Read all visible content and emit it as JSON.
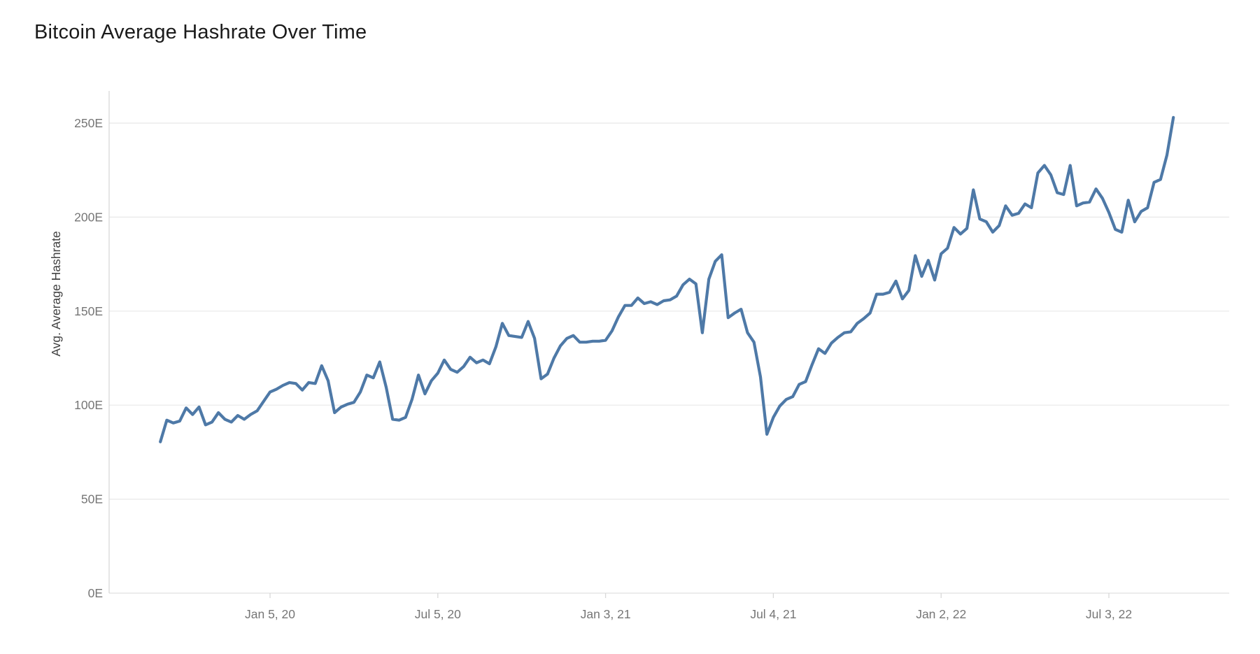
{
  "chart": {
    "title": "Bitcoin Average Hashrate Over Time",
    "y_axis_title": "Avg. Average Hashrate"
  },
  "colors": {
    "line": "#4e79a7",
    "gridline": "#e8e8e8",
    "axis_line": "#d8d8d8",
    "tick_label": "#767676",
    "axis_title": "#424242",
    "title": "#1a1a1a",
    "background": "#ffffff"
  },
  "chart_data": {
    "type": "line",
    "title": "Bitcoin Average Hashrate Over Time",
    "xlabel": "",
    "ylabel": "Avg. Average Hashrate",
    "series_name": "Avg. Average Hashrate",
    "unit_suffix": "E",
    "grid": "horizontal",
    "legend": "none",
    "ylim": [
      0,
      267
    ],
    "y_ticks": [
      0,
      50,
      100,
      150,
      200,
      250
    ],
    "y_tick_labels": [
      "0E",
      "50E",
      "100E",
      "150E",
      "200E",
      "250E"
    ],
    "x_tick_labels": [
      "Jan 5, 20",
      "Jul 5, 20",
      "Jan 3, 21",
      "Jul 4, 21",
      "Jan 2, 22",
      "Jul 3, 22"
    ],
    "x_tick_indices": [
      17,
      43,
      69,
      95,
      121,
      147
    ],
    "dates": [
      "2019-09-08",
      "2019-09-15",
      "2019-09-22",
      "2019-09-29",
      "2019-10-06",
      "2019-10-13",
      "2019-10-20",
      "2019-10-27",
      "2019-11-03",
      "2019-11-10",
      "2019-11-17",
      "2019-11-24",
      "2019-12-01",
      "2019-12-08",
      "2019-12-15",
      "2019-12-22",
      "2019-12-29",
      "2020-01-05",
      "2020-01-12",
      "2020-01-19",
      "2020-01-26",
      "2020-02-02",
      "2020-02-09",
      "2020-02-16",
      "2020-02-23",
      "2020-03-01",
      "2020-03-08",
      "2020-03-15",
      "2020-03-22",
      "2020-03-29",
      "2020-04-05",
      "2020-04-12",
      "2020-04-19",
      "2020-04-26",
      "2020-05-03",
      "2020-05-10",
      "2020-05-17",
      "2020-05-24",
      "2020-05-31",
      "2020-06-07",
      "2020-06-14",
      "2020-06-21",
      "2020-06-28",
      "2020-07-05",
      "2020-07-12",
      "2020-07-19",
      "2020-07-26",
      "2020-08-02",
      "2020-08-09",
      "2020-08-16",
      "2020-08-23",
      "2020-08-30",
      "2020-09-06",
      "2020-09-13",
      "2020-09-20",
      "2020-09-27",
      "2020-10-04",
      "2020-10-11",
      "2020-10-18",
      "2020-10-25",
      "2020-11-01",
      "2020-11-08",
      "2020-11-15",
      "2020-11-22",
      "2020-11-29",
      "2020-12-06",
      "2020-12-13",
      "2020-12-20",
      "2020-12-27",
      "2021-01-03",
      "2021-01-10",
      "2021-01-17",
      "2021-01-24",
      "2021-01-31",
      "2021-02-07",
      "2021-02-14",
      "2021-02-21",
      "2021-02-28",
      "2021-03-07",
      "2021-03-14",
      "2021-03-21",
      "2021-03-28",
      "2021-04-04",
      "2021-04-11",
      "2021-04-18",
      "2021-04-25",
      "2021-05-02",
      "2021-05-09",
      "2021-05-16",
      "2021-05-23",
      "2021-05-30",
      "2021-06-06",
      "2021-06-13",
      "2021-06-20",
      "2021-06-27",
      "2021-07-04",
      "2021-07-11",
      "2021-07-18",
      "2021-07-25",
      "2021-08-01",
      "2021-08-08",
      "2021-08-15",
      "2021-08-22",
      "2021-08-29",
      "2021-09-05",
      "2021-09-12",
      "2021-09-19",
      "2021-09-26",
      "2021-10-03",
      "2021-10-10",
      "2021-10-17",
      "2021-10-24",
      "2021-10-31",
      "2021-11-07",
      "2021-11-14",
      "2021-11-21",
      "2021-11-28",
      "2021-12-05",
      "2021-12-12",
      "2021-12-19",
      "2021-12-26",
      "2022-01-02",
      "2022-01-09",
      "2022-01-16",
      "2022-01-23",
      "2022-01-30",
      "2022-02-06",
      "2022-02-13",
      "2022-02-20",
      "2022-02-27",
      "2022-03-06",
      "2022-03-13",
      "2022-03-20",
      "2022-03-27",
      "2022-04-03",
      "2022-04-10",
      "2022-04-17",
      "2022-04-24",
      "2022-05-01",
      "2022-05-08",
      "2022-05-15",
      "2022-05-22",
      "2022-05-29",
      "2022-06-05",
      "2022-06-12",
      "2022-06-19",
      "2022-06-26",
      "2022-07-03",
      "2022-07-10",
      "2022-07-17",
      "2022-07-24",
      "2022-07-31",
      "2022-08-07",
      "2022-08-14",
      "2022-08-21",
      "2022-08-28",
      "2022-09-04",
      "2022-09-11"
    ],
    "values": [
      80.5,
      92,
      90.5,
      91.5,
      98.5,
      95,
      99,
      89.5,
      91,
      96,
      92.5,
      91,
      94.5,
      92.5,
      95,
      97,
      102,
      107,
      108.5,
      110.5,
      112,
      111.5,
      108,
      112,
      111.5,
      121,
      113,
      96,
      99,
      100.5,
      101.5,
      107,
      116,
      114.5,
      123,
      109.5,
      92.5,
      92,
      93.5,
      103,
      116,
      106,
      113,
      117,
      124,
      119,
      117.5,
      120.5,
      125.5,
      122.5,
      124,
      122,
      131,
      143.5,
      137,
      136.5,
      136,
      144.5,
      135.5,
      114,
      116.5,
      125,
      131.5,
      135.5,
      137,
      133.5,
      133.5,
      134,
      134,
      134.5,
      139.5,
      147,
      153,
      153,
      157,
      154,
      155,
      153.5,
      155.5,
      156,
      158,
      164,
      167,
      164.5,
      138.5,
      167,
      176.5,
      180,
      146.5,
      149,
      151,
      138.5,
      133.5,
      115,
      84.5,
      93.5,
      99.5,
      103,
      104.5,
      111,
      112.5,
      121.5,
      130,
      127.5,
      133,
      136,
      138.5,
      139,
      143.5,
      146,
      149,
      159,
      159,
      160,
      166,
      156.5,
      161,
      179.5,
      168.5,
      177,
      166.5,
      180.5,
      183.5,
      194.5,
      191,
      194,
      214.5,
      199,
      197.5,
      192,
      195.5,
      206,
      201,
      202,
      207,
      205,
      223.5,
      227.5,
      222.5,
      213,
      212,
      227.5,
      206,
      207.5,
      208,
      215,
      210,
      202.5,
      193.5,
      192,
      209,
      197.5,
      203,
      205,
      218.5,
      220,
      233,
      253
    ]
  }
}
